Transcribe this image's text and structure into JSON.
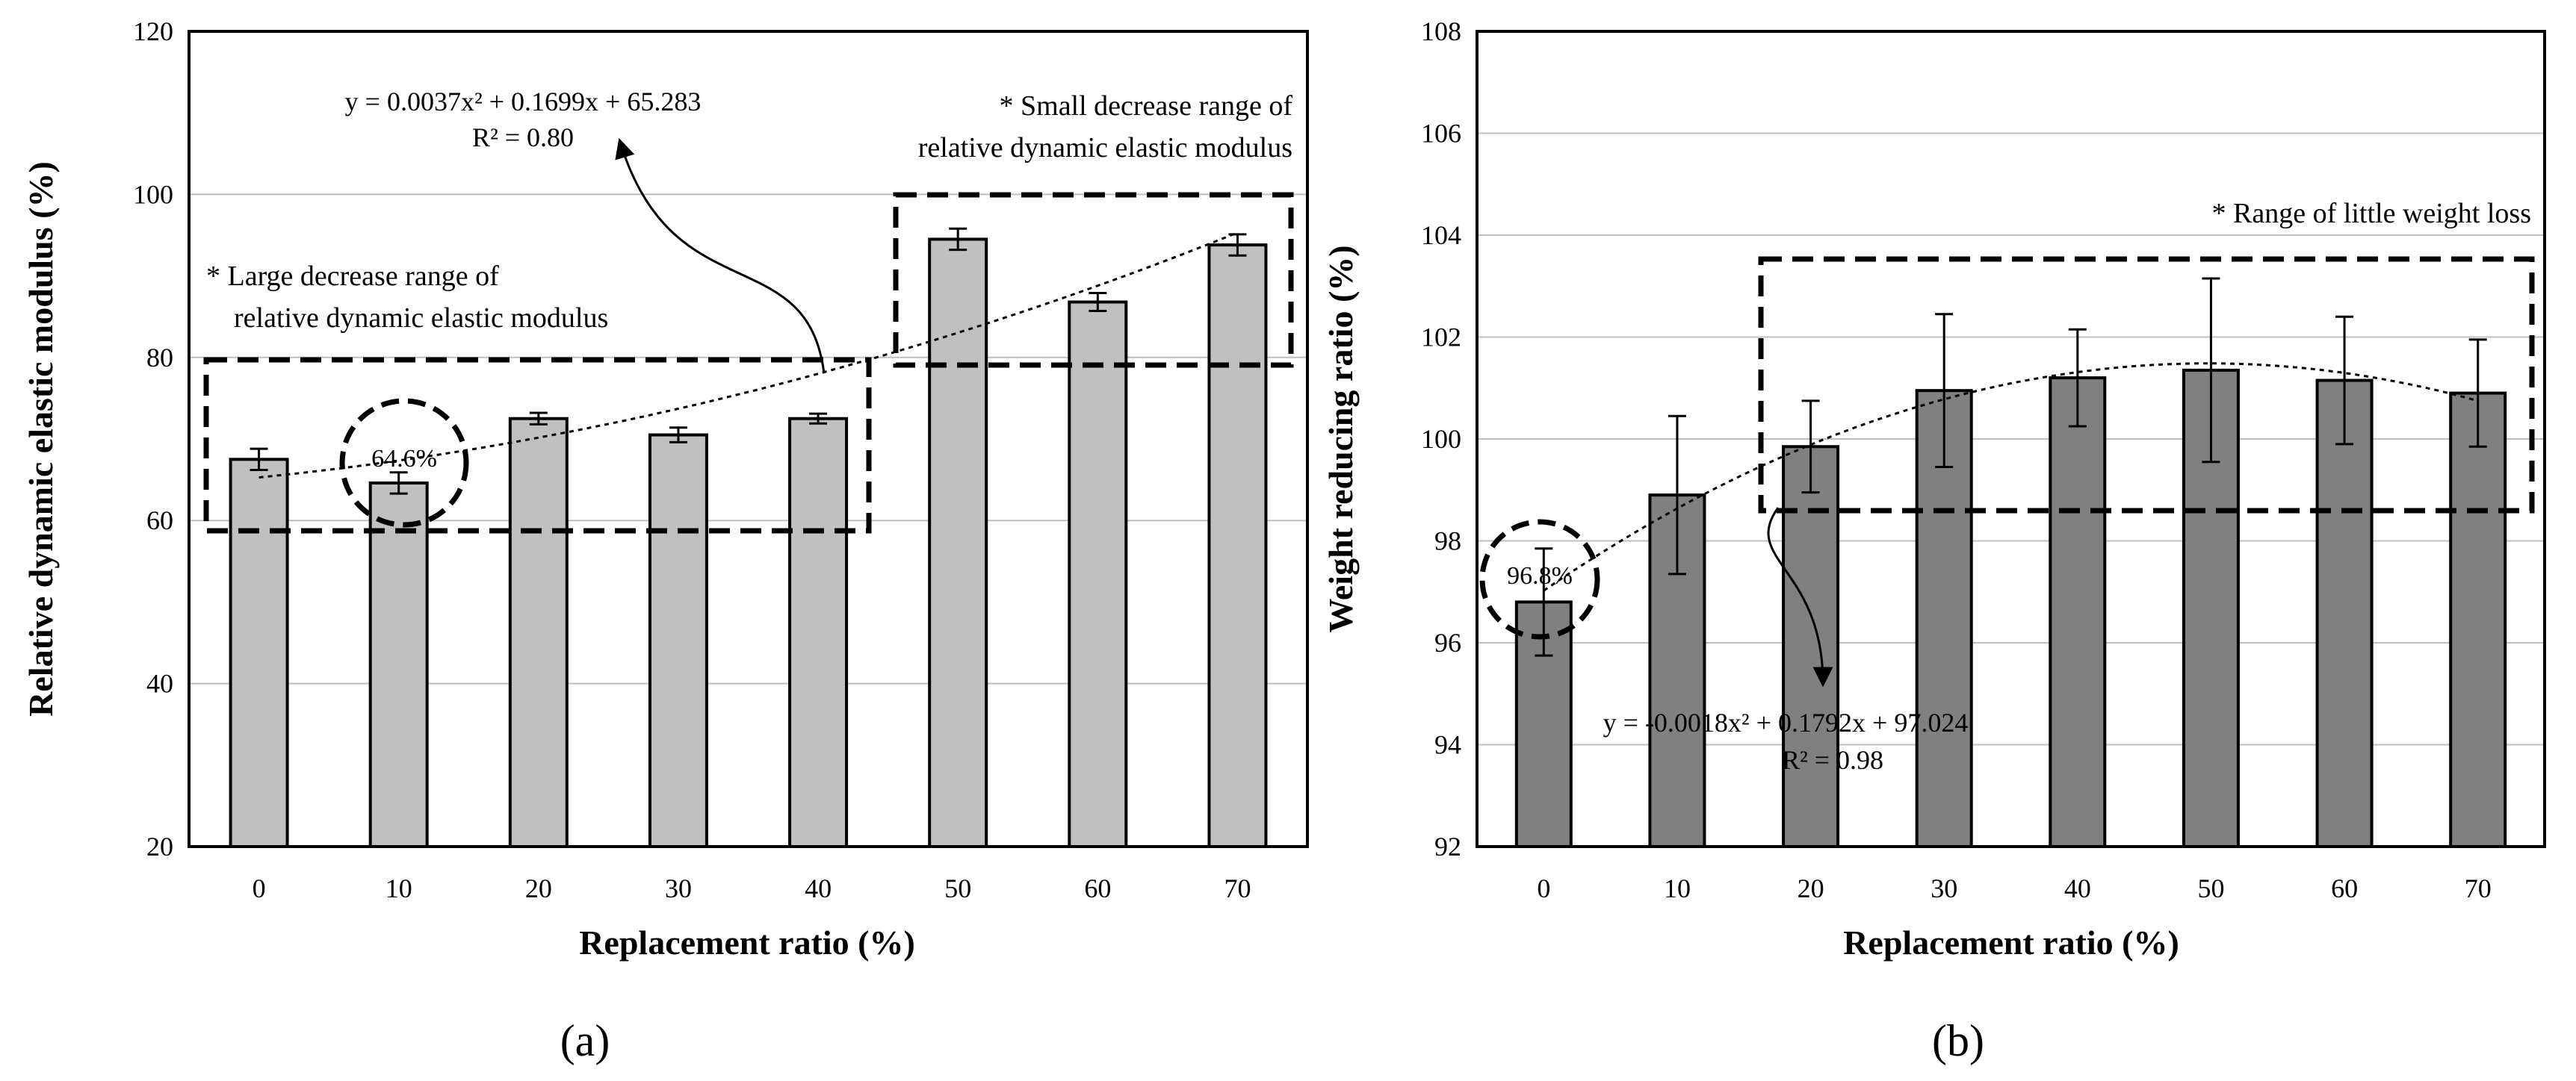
{
  "chart_data": [
    {
      "type": "bar",
      "panel_label": "(a)",
      "categories": [
        "0",
        "10",
        "20",
        "30",
        "40",
        "50",
        "60",
        "70"
      ],
      "values": [
        67.5,
        64.6,
        72.5,
        70.5,
        72.5,
        94.5,
        86.8,
        93.8
      ],
      "errors": [
        1.3,
        1.3,
        0.7,
        0.9,
        0.6,
        1.3,
        1.1,
        1.3
      ],
      "xlabel": "Replacement ratio (%)",
      "ylabel": "Relative dynamic elastic modulus (%)",
      "ylim": [
        20,
        120
      ],
      "yticks": [
        "20",
        "40",
        "60",
        "80",
        "100",
        "120"
      ],
      "grid": true,
      "bar_color": "#c0c0c0",
      "trendline": {
        "kind": "polynomial",
        "equation": "y = 0.0037x² + 0.1699x + 65.283",
        "r2": "R² = 0.80",
        "coefficients": [
          0.0037,
          0.1699,
          65.283
        ]
      },
      "annotations": {
        "low_value": "64.6%",
        "large_range_line1": "* Large decrease range of",
        "large_range_line2": "relative dynamic elastic modulus",
        "small_range_line1": "* Small decrease range of",
        "small_range_line2": "relative dynamic elastic modulus"
      }
    },
    {
      "type": "bar",
      "panel_label": "(b)",
      "categories": [
        "0",
        "10",
        "20",
        "30",
        "40",
        "50",
        "60",
        "70"
      ],
      "values": [
        96.8,
        98.9,
        99.85,
        100.95,
        101.2,
        101.35,
        101.15,
        100.9
      ],
      "errors": [
        1.05,
        1.55,
        0.9,
        1.5,
        0.95,
        1.8,
        1.25,
        1.05
      ],
      "xlabel": "Replacement ratio (%)",
      "ylabel": "Weight reducing ratio (%)",
      "ylim": [
        92,
        108
      ],
      "yticks": [
        "92",
        "94",
        "96",
        "98",
        "100",
        "102",
        "104",
        "106",
        "108"
      ],
      "grid": true,
      "bar_color": "#808080",
      "trendline": {
        "kind": "polynomial",
        "equation": "y = -0.0018x² + 0.1792x + 97.024",
        "r2": "R² = 0.98",
        "coefficients": [
          -0.0018,
          0.1792,
          97.024
        ]
      },
      "annotations": {
        "low_value": "96.8%",
        "range_label": "* Range of little weight loss"
      }
    }
  ]
}
